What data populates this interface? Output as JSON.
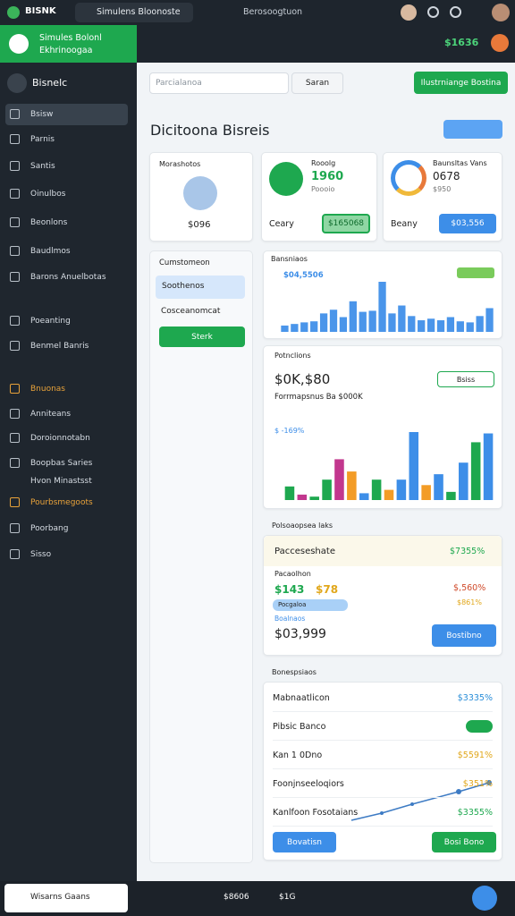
{
  "topbar": {
    "app": "BISNK",
    "tab1": "Simulens Bloonoste",
    "tab2": "Berosoogtuon"
  },
  "brand": {
    "line1": "Simules Bolonl",
    "line2": "Ekhrinoogaa"
  },
  "header": {
    "badge": "$1636"
  },
  "sidebar": {
    "title": "Bisnelc",
    "items": [
      "Bsisw",
      "Parnis",
      "Santis",
      "Oinulbos",
      "Beonlons",
      "Baudlmos",
      "Barons Anuelbotas",
      "Poeanting",
      "Benmel Banris",
      "Bnuonas",
      "Anniteans",
      "Doroionnotabn",
      "Boopbas Saries Hvon Minastsst",
      "Pourbsmegoots",
      "Poorbang",
      "Sisso"
    ]
  },
  "search": {
    "placeholder": "Parcialanoa",
    "button": "Saran",
    "action": "Ilustrniange Bostina"
  },
  "page_title": "Dicitoona Bisreis",
  "cards": [
    {
      "label": "Morashotos",
      "value": "$096"
    },
    {
      "label": "Rooolg",
      "value": "1960",
      "sub": "Poooio",
      "foot": "Ceary",
      "button": "$165068"
    },
    {
      "label": "Baunsltas Vans",
      "value": "0678",
      "sub": "$950",
      "foot": "Beany",
      "button": "$03,556"
    }
  ],
  "filter": {
    "title": "Cumstomeon",
    "option1": "Soothenos",
    "option2": "Cosceanomcat",
    "button": "Sterk"
  },
  "chart1": {
    "type": "bar",
    "title": "Bansniaos",
    "legend": "$04,5506",
    "color": "#4a95ea",
    "values": [
      12,
      15,
      18,
      20,
      35,
      42,
      28,
      58,
      38,
      40,
      95,
      35,
      50,
      30,
      22,
      25,
      22,
      28,
      20,
      18,
      30,
      45
    ]
  },
  "chart2": {
    "type": "bar",
    "title": "Potnclions",
    "value": "$0K,$80",
    "subtitle": "Forrmapsnus Ba $000K",
    "button": "Bsiss",
    "label": "$ -169%",
    "values": [
      20,
      8,
      5,
      30,
      60,
      42,
      10,
      30,
      15,
      30,
      100,
      22,
      38,
      12,
      55,
      85,
      98
    ],
    "colors": [
      "#1ea84f",
      "#c2378e",
      "#1ea84f",
      "#1ea84f",
      "#c2378e",
      "#f39c26",
      "#3d8ee8",
      "#1ea84f",
      "#f39c26",
      "#3d8ee8",
      "#3d8ee8",
      "#f39c26",
      "#3d8ee8",
      "#1ea84f",
      "#3d8ee8",
      "#1ea84f",
      "#3d8ee8"
    ]
  },
  "summary": {
    "title": "Polsoaopsea laks",
    "head": "Pacceseshate",
    "head_value": "$7355%",
    "label": "Pacaolhon",
    "value_a": "$143",
    "value_b": "$78",
    "value_red": "$,560%",
    "value_orange": "$861%",
    "pill": "Pocgaloa",
    "sub": "Boalnaos",
    "total": "$03,999",
    "button": "Bostibno"
  },
  "list": {
    "title": "Bonespsiaos",
    "rows": [
      {
        "name": "Mabnaatlicon",
        "value": "$3335%"
      },
      {
        "name": "Pibsic Banco"
      },
      {
        "name": "Kan 1 0Dno",
        "value": "$5591%"
      },
      {
        "name": "Foonjnseeloqiors",
        "value": "$351%"
      },
      {
        "name": "Kanlfoon Fosotaians",
        "value": "$3355%"
      }
    ],
    "button1": "Bovatisn",
    "button2": "Bosi Bono"
  },
  "taskbar": {
    "search": "Wisarns Gaans",
    "item1": "$8606",
    "item2": "$1G"
  }
}
